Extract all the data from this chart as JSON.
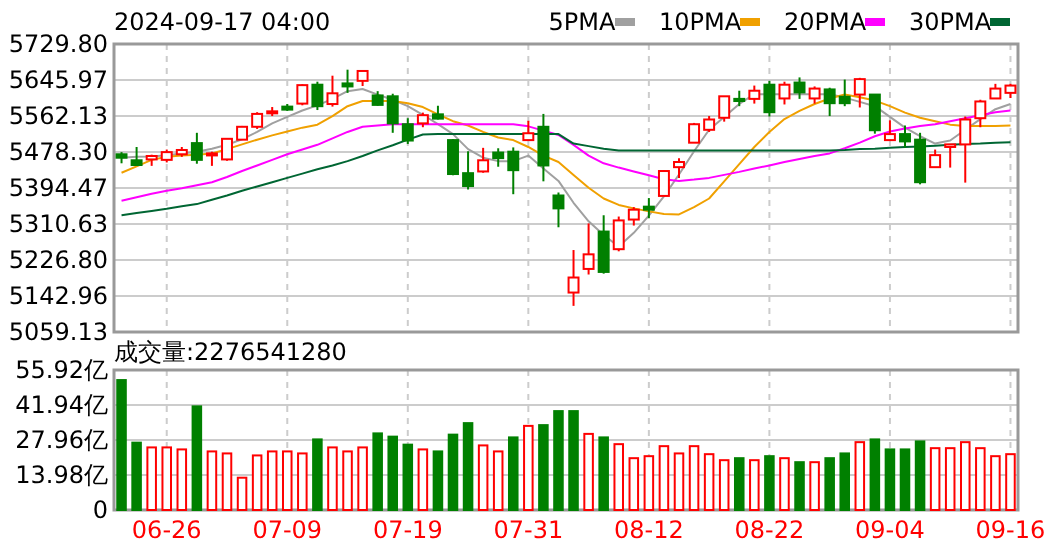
{
  "chart_data": [
    {
      "type": "candlestick",
      "title": "2024-09-17 04:00",
      "categories": [
        null,
        null,
        null,
        null,
        null,
        null,
        null,
        null,
        null,
        null,
        null,
        null,
        null,
        null,
        null,
        null,
        null,
        null,
        null,
        null,
        null,
        null,
        null,
        null,
        null,
        null,
        null,
        null,
        null,
        null,
        null,
        null,
        null,
        null,
        null,
        null,
        null,
        null,
        null,
        null,
        null,
        null,
        null,
        null,
        null,
        null,
        null,
        null,
        null,
        null,
        null,
        null,
        null,
        null,
        null,
        null,
        null,
        null,
        null,
        null
      ],
      "ohlc": [
        [
          5473,
          5478,
          5452,
          5465
        ],
        [
          5459,
          5490,
          5447,
          5448
        ],
        [
          5461,
          5472,
          5446,
          5469
        ],
        [
          5460,
          5484,
          5454,
          5478
        ],
        [
          5473,
          5490,
          5467,
          5483
        ],
        [
          5499,
          5523,
          5451,
          5460
        ],
        [
          5471,
          5479,
          5446,
          5475
        ],
        [
          5461,
          5510,
          5458,
          5509
        ],
        [
          5507,
          5539,
          5507,
          5537
        ],
        [
          5537,
          5571,
          5532,
          5567
        ],
        [
          5572,
          5583,
          5562,
          5573
        ],
        [
          5584,
          5590,
          5574,
          5577
        ],
        [
          5591,
          5636,
          5587,
          5634
        ],
        [
          5635,
          5642,
          5576,
          5585
        ],
        [
          5590,
          5656,
          5584,
          5615
        ],
        [
          5638,
          5670,
          5616,
          5631
        ],
        [
          5644,
          5667,
          5632,
          5667
        ],
        [
          5610,
          5620,
          5586,
          5588
        ],
        [
          5608,
          5614,
          5523,
          5545
        ],
        [
          5543,
          5557,
          5497,
          5505
        ],
        [
          5545,
          5570,
          5536,
          5564
        ],
        [
          5566,
          5586,
          5554,
          5556
        ],
        [
          5506,
          5508,
          5424,
          5427
        ],
        [
          5429,
          5480,
          5391,
          5399
        ],
        [
          5433,
          5488,
          5430,
          5459
        ],
        [
          5477,
          5487,
          5444,
          5464
        ],
        [
          5479,
          5489,
          5380,
          5436
        ],
        [
          5506,
          5551,
          5505,
          5522
        ],
        [
          5537,
          5567,
          5410,
          5447
        ],
        [
          5377,
          5384,
          5303,
          5347
        ],
        [
          5151,
          5250,
          5120,
          5186
        ],
        [
          5206,
          5312,
          5193,
          5240
        ],
        [
          5293,
          5331,
          5195,
          5199
        ],
        [
          5252,
          5328,
          5247,
          5319
        ],
        [
          5321,
          5350,
          5307,
          5344
        ],
        [
          5351,
          5371,
          5324,
          5344
        ],
        [
          5376,
          5436,
          5376,
          5434
        ],
        [
          5443,
          5464,
          5418,
          5455
        ],
        [
          5500,
          5546,
          5500,
          5543
        ],
        [
          5530,
          5562,
          5525,
          5554
        ],
        [
          5558,
          5608,
          5549,
          5608
        ],
        [
          5602,
          5621,
          5585,
          5597
        ],
        [
          5602,
          5633,
          5591,
          5621
        ],
        [
          5635,
          5644,
          5561,
          5571
        ],
        [
          5603,
          5642,
          5589,
          5635
        ],
        [
          5640,
          5652,
          5602,
          5617
        ],
        [
          5603,
          5631,
          5591,
          5626
        ],
        [
          5624,
          5628,
          5562,
          5592
        ],
        [
          5607,
          5647,
          5585,
          5592
        ],
        [
          5612,
          5651,
          5582,
          5648
        ],
        [
          5612,
          5612,
          5521,
          5529
        ],
        [
          5506,
          5552,
          5504,
          5520
        ],
        [
          5520,
          5540,
          5489,
          5503
        ],
        [
          5507,
          5523,
          5403,
          5408
        ],
        [
          5443,
          5484,
          5443,
          5471
        ],
        [
          5490,
          5497,
          5442,
          5496
        ],
        [
          5496,
          5561,
          5407,
          5554
        ],
        [
          5557,
          5600,
          5536,
          5596
        ],
        [
          5603,
          5637,
          5603,
          5626
        ],
        [
          5616,
          5637,
          5604,
          5633
        ]
      ],
      "colors": [
        "#008000",
        "#008000",
        "#ff0000",
        "#ff0000",
        "#ff0000",
        "#008000",
        "#ff0000",
        "#ff0000",
        "#ff0000",
        "#ff0000",
        "#ff0000",
        "#008000",
        "#ff0000",
        "#008000",
        "#ff0000",
        "#008000",
        "#ff0000",
        "#008000",
        "#008000",
        "#008000",
        "#ff0000",
        "#008000",
        "#008000",
        "#008000",
        "#ff0000",
        "#008000",
        "#008000",
        "#ff0000",
        "#008000",
        "#008000",
        "#ff0000",
        "#ff0000",
        "#008000",
        "#ff0000",
        "#ff0000",
        "#008000",
        "#ff0000",
        "#ff0000",
        "#ff0000",
        "#ff0000",
        "#ff0000",
        "#008000",
        "#ff0000",
        "#008000",
        "#ff0000",
        "#008000",
        "#ff0000",
        "#008000",
        "#008000",
        "#ff0000",
        "#008000",
        "#ff0000",
        "#008000",
        "#008000",
        "#ff0000",
        "#ff0000",
        "#ff0000",
        "#ff0000",
        "#ff0000",
        "#ff0000"
      ],
      "series": [
        {
          "type": "line",
          "name": "5PMA",
          "color": "#a0a0a0",
          "values": [
            5465,
            5467,
            5468,
            5471,
            5475,
            5479,
            5486,
            5495,
            5508,
            5525,
            5545,
            5560,
            5575,
            5587,
            5602,
            5620,
            5625,
            5612,
            5600,
            5585,
            5565,
            5543,
            5520,
            5485,
            5465,
            5457,
            5457,
            5470,
            5440,
            5411,
            5360,
            5317,
            5285,
            5258,
            5290,
            5330,
            5375,
            5426,
            5480,
            5530,
            5560,
            5590,
            5613,
            5613,
            5613,
            5613,
            5613,
            5613,
            5605,
            5595,
            5585,
            5560,
            5535,
            5515,
            5498,
            5505,
            5530,
            5555,
            5578,
            5590
          ]
        },
        {
          "type": "line",
          "name": "10PMA",
          "color": "#f0a000",
          "values": [
            5430,
            5445,
            5460,
            5467,
            5470,
            5472,
            5475,
            5485,
            5496,
            5507,
            5517,
            5526,
            5535,
            5542,
            5562,
            5585,
            5597,
            5597,
            5597,
            5592,
            5583,
            5566,
            5550,
            5540,
            5525,
            5512,
            5506,
            5490,
            5470,
            5455,
            5425,
            5395,
            5370,
            5355,
            5347,
            5340,
            5334,
            5333,
            5350,
            5370,
            5410,
            5450,
            5490,
            5525,
            5555,
            5574,
            5590,
            5603,
            5612,
            5606,
            5598,
            5585,
            5570,
            5558,
            5550,
            5542,
            5539,
            5539,
            5539,
            5540
          ]
        },
        {
          "type": "line",
          "name": "20PMA",
          "color": "#ff00ff",
          "values": [
            5365,
            5373,
            5381,
            5388,
            5394,
            5401,
            5408,
            5420,
            5434,
            5447,
            5460,
            5473,
            5484,
            5495,
            5510,
            5525,
            5537,
            5540,
            5543,
            5543,
            5543,
            5543,
            5543,
            5543,
            5543,
            5543,
            5543,
            5538,
            5528,
            5518,
            5495,
            5470,
            5452,
            5442,
            5433,
            5424,
            5415,
            5411,
            5414,
            5418,
            5425,
            5432,
            5440,
            5447,
            5455,
            5462,
            5469,
            5475,
            5487,
            5500,
            5515,
            5526,
            5533,
            5539,
            5543,
            5550,
            5557,
            5564,
            5571,
            5575
          ]
        },
        {
          "type": "line",
          "name": "30PMA",
          "color": "#006633",
          "values": [
            5331,
            5336,
            5341,
            5346,
            5352,
            5357,
            5367,
            5377,
            5388,
            5398,
            5408,
            5418,
            5428,
            5438,
            5447,
            5457,
            5469,
            5482,
            5494,
            5507,
            5519,
            5520,
            5520,
            5520,
            5520,
            5520,
            5520,
            5520,
            5520,
            5520,
            5498,
            5492,
            5486,
            5482,
            5482,
            5482,
            5482,
            5482,
            5482,
            5482,
            5482,
            5482,
            5482,
            5482,
            5482,
            5482,
            5482,
            5482,
            5483,
            5485,
            5486,
            5488,
            5490,
            5491,
            5493,
            5495,
            5497,
            5498,
            5500,
            5501
          ]
        }
      ],
      "ylim": [
        5059.13,
        5729.8
      ],
      "yticks": [
        {
          "value": 5059.13,
          "label": "5059.13"
        },
        {
          "value": 5142.96,
          "label": "5142.96"
        },
        {
          "value": 5226.8,
          "label": "5226.80"
        },
        {
          "value": 5310.63,
          "label": "5310.63"
        },
        {
          "value": 5394.47,
          "label": "5394.47"
        },
        {
          "value": 5478.3,
          "label": "5478.30"
        },
        {
          "value": 5562.13,
          "label": "5562.13"
        },
        {
          "value": 5645.97,
          "label": "5645.97"
        },
        {
          "value": 5729.8,
          "label": "5729.80"
        }
      ],
      "grid": true,
      "legend": "top right",
      "tick_labels": "y"
    },
    {
      "type": "bar",
      "title": "成交量:2276541280",
      "categories": [
        null,
        null,
        null,
        "06-26",
        null,
        null,
        null,
        null,
        null,
        null,
        null,
        "07-09",
        null,
        null,
        null,
        null,
        null,
        null,
        null,
        "07-19",
        null,
        null,
        null,
        null,
        null,
        null,
        null,
        "07-31",
        null,
        null,
        null,
        null,
        null,
        null,
        null,
        "08-12",
        null,
        null,
        null,
        null,
        null,
        null,
        null,
        "08-22",
        null,
        null,
        null,
        null,
        null,
        null,
        null,
        "09-04",
        null,
        null,
        null,
        null,
        null,
        null,
        null,
        "09-16"
      ],
      "values": [
        51.9,
        26.9,
        25.0,
        25.0,
        24.2,
        41.4,
        23.4,
        22.6,
        12.9,
        21.8,
        23.4,
        23.4,
        22.6,
        28.2,
        25.0,
        23.4,
        25.0,
        30.6,
        29.3,
        26.1,
        24.2,
        23.4,
        30.1,
        34.7,
        25.8,
        23.4,
        29.0,
        33.6,
        33.9,
        39.5,
        39.5,
        30.4,
        29.0,
        26.3,
        20.7,
        21.5,
        25.5,
        22.6,
        25.5,
        22.3,
        19.9,
        20.7,
        19.9,
        21.5,
        20.7,
        19.1,
        19.1,
        20.7,
        22.6,
        27.1,
        28.2,
        24.2,
        24.2,
        27.4,
        24.7,
        24.7,
        27.1,
        24.7,
        21.5,
        22.3
      ],
      "colors": [
        "#008000",
        "#008000",
        "#ff0000",
        "#ff0000",
        "#ff0000",
        "#008000",
        "#ff0000",
        "#ff0000",
        "#ff0000",
        "#ff0000",
        "#ff0000",
        "#ff0000",
        "#ff0000",
        "#008000",
        "#ff0000",
        "#ff0000",
        "#ff0000",
        "#008000",
        "#008000",
        "#008000",
        "#ff0000",
        "#008000",
        "#008000",
        "#008000",
        "#ff0000",
        "#ff0000",
        "#008000",
        "#ff0000",
        "#008000",
        "#008000",
        "#008000",
        "#ff0000",
        "#008000",
        "#ff0000",
        "#ff0000",
        "#ff0000",
        "#ff0000",
        "#ff0000",
        "#ff0000",
        "#ff0000",
        "#ff0000",
        "#008000",
        "#ff0000",
        "#008000",
        "#ff0000",
        "#008000",
        "#ff0000",
        "#008000",
        "#008000",
        "#ff0000",
        "#008000",
        "#008000",
        "#008000",
        "#008000",
        "#ff0000",
        "#ff0000",
        "#ff0000",
        "#ff0000",
        "#ff0000",
        "#ff0000"
      ],
      "ylim": [
        0,
        55.92
      ],
      "yticks": [
        0,
        {
          "value": 13.98,
          "label": "13.98亿"
        },
        {
          "value": 27.96,
          "label": "27.96亿"
        },
        {
          "value": 41.94,
          "label": "41.94亿"
        },
        {
          "value": 55.92,
          "label": "55.92亿"
        }
      ],
      "grid": true
    }
  ]
}
